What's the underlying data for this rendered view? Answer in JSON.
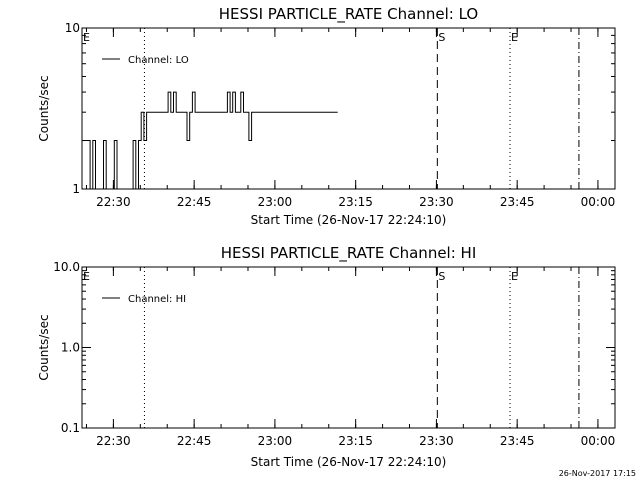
{
  "chart_data": [
    {
      "type": "line",
      "title": "HESSI PARTICLE_RATE Channel: LO",
      "xlabel": "Start Time (26-Nov-17 22:24:10)",
      "ylabel": "Counts/sec",
      "x_tick_labels": [
        "22:30",
        "22:45",
        "23:00",
        "23:15",
        "23:30",
        "23:45",
        "00:00"
      ],
      "x_tick_minutes": [
        5.83,
        20.83,
        35.83,
        50.83,
        65.83,
        80.83,
        95.83
      ],
      "xlim_minutes": [
        0,
        99
      ],
      "y_scale": "log",
      "ylim": [
        1,
        10
      ],
      "y_tick_labels": [
        "1",
        "10"
      ],
      "y_tick_values": [
        1,
        10
      ],
      "legend": "top-left",
      "series": [
        {
          "name": "Channel: LO",
          "x_minutes": [
            0,
            0.5,
            1,
            1.5,
            2,
            2.5,
            3,
            3.5,
            4,
            4.5,
            5,
            5.5,
            6,
            6.5,
            7,
            7.5,
            8,
            8.5,
            9,
            9.5,
            10,
            10.5,
            11,
            11.5,
            12,
            12.5,
            13,
            13.5,
            14,
            14.5,
            15,
            15.5,
            16,
            16.5,
            17,
            17.5,
            18,
            18.5,
            19,
            19.5,
            20,
            20.5,
            21,
            21.5,
            22,
            22.5,
            23,
            23.5,
            24,
            24.5,
            25,
            25.5,
            26,
            26.5,
            27,
            27.5,
            28,
            28.5,
            29,
            29.5,
            30,
            30.5,
            31,
            31.5,
            32,
            32.5,
            33,
            33.5,
            34,
            34.5,
            35,
            35.5,
            36,
            36.5,
            37,
            37.5,
            38,
            38.5,
            39,
            39.5,
            40,
            40.5,
            41,
            41.5,
            42,
            42.5,
            43,
            43.5,
            44,
            44.5,
            45,
            45.5,
            46,
            46.5,
            47
          ],
          "values": [
            2,
            2,
            2,
            1,
            2,
            1,
            1,
            1,
            2,
            1,
            1,
            1,
            2,
            1,
            1,
            1,
            1,
            1,
            1,
            2,
            1,
            2,
            3,
            2,
            3,
            3,
            3,
            3,
            3,
            3,
            3,
            3,
            4,
            3,
            4,
            3,
            3,
            3,
            3,
            2,
            3,
            4,
            3,
            3,
            3,
            3,
            3,
            3,
            3,
            3,
            3,
            3,
            3,
            3,
            4,
            3,
            4,
            3,
            3,
            4,
            3,
            3,
            2,
            3,
            3,
            3,
            3,
            3,
            3,
            3,
            3,
            3,
            3,
            3,
            3,
            3,
            3,
            3,
            3,
            3,
            3,
            3,
            3,
            3,
            3,
            3,
            3,
            3,
            3,
            3,
            3,
            3,
            3,
            3,
            3
          ]
        }
      ],
      "annotations": [
        {
          "label": "E",
          "x_minutes": 0,
          "line": "none"
        },
        {
          "label": "",
          "x_minutes": 11.6,
          "line": "dotted"
        },
        {
          "label": "S",
          "x_minutes": 66.0,
          "line": "dashed"
        },
        {
          "label": "E",
          "x_minutes": 79.5,
          "line": "dotted"
        },
        {
          "label": "",
          "x_minutes": 92.3,
          "line": "dash-dot"
        }
      ]
    },
    {
      "type": "line",
      "title": "HESSI PARTICLE_RATE Channel: HI",
      "xlabel": "Start Time (26-Nov-17 22:24:10)",
      "ylabel": "Counts/sec",
      "x_tick_labels": [
        "22:30",
        "22:45",
        "23:00",
        "23:15",
        "23:30",
        "23:45",
        "00:00"
      ],
      "x_tick_minutes": [
        5.83,
        20.83,
        35.83,
        50.83,
        65.83,
        80.83,
        95.83
      ],
      "xlim_minutes": [
        0,
        99
      ],
      "y_scale": "log",
      "ylim": [
        0.1,
        10
      ],
      "y_tick_labels": [
        "0.1",
        "1.0",
        "10.0"
      ],
      "y_tick_values": [
        0.1,
        1,
        10
      ],
      "legend": "top-left",
      "series": [
        {
          "name": "Channel: HI",
          "x_minutes": [],
          "values": []
        }
      ],
      "annotations": [
        {
          "label": "E",
          "x_minutes": 0,
          "line": "none"
        },
        {
          "label": "",
          "x_minutes": 11.6,
          "line": "dotted"
        },
        {
          "label": "S",
          "x_minutes": 66.0,
          "line": "dashed"
        },
        {
          "label": "E",
          "x_minutes": 79.5,
          "line": "dotted"
        },
        {
          "label": "",
          "x_minutes": 92.3,
          "line": "dash-dot"
        }
      ]
    }
  ],
  "footer": {
    "timestamp": "26-Nov-2017 17:15"
  }
}
